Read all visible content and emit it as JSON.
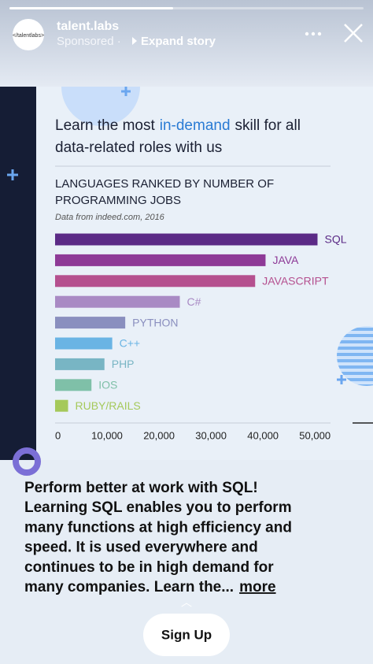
{
  "header": {
    "avatar": "</talentlabs>",
    "account": "talent.labs",
    "sponsored": "Sponsored ·",
    "expand": "Expand story"
  },
  "headline": {
    "before": "Learn the most",
    "highlight": "in-demand",
    "after": "skill for all",
    "line2": "data-related roles with us"
  },
  "chart_data": {
    "type": "bar",
    "orientation": "horizontal",
    "title_lines": [
      "LANGUAGES RANKED BY NUMBER OF",
      "PROGRAMMING JOBS"
    ],
    "subtitle": "Data from indeed.com, 2016",
    "categories": [
      "SQL",
      "JAVA",
      "JAVASCRIPT",
      "C#",
      "PYTHON",
      "C++",
      "PHP",
      "IOS",
      "RUBY/RAILS"
    ],
    "values": [
      50500,
      40500,
      38500,
      24000,
      13500,
      11000,
      9500,
      7000,
      2500
    ],
    "colors": [
      "#5b2a86",
      "#8e3a97",
      "#b5508f",
      "#a98ac4",
      "#8a8fbf",
      "#6ab4e4",
      "#78b5c4",
      "#7fc0a8",
      "#a5c95a"
    ],
    "xlim": [
      0,
      53000
    ],
    "xticks": [
      0,
      {
        "value": 10000,
        "label": "10,000"
      },
      {
        "value": 20000,
        "label": "20,000"
      },
      {
        "value": 30000,
        "label": "30,000"
      },
      {
        "value": 40000,
        "label": "40,000"
      },
      {
        "value": 50000,
        "label": "50,000"
      }
    ],
    "grid": false
  },
  "caption": {
    "lines": [
      "Perform better at work with SQL!",
      "Learning SQL enables you to perform",
      "many functions at high efficiency and",
      "speed. It is used everywhere and",
      "continues to be in high demand for",
      "many companies. Learn the..."
    ],
    "more": "more"
  },
  "button": "Sign Up"
}
